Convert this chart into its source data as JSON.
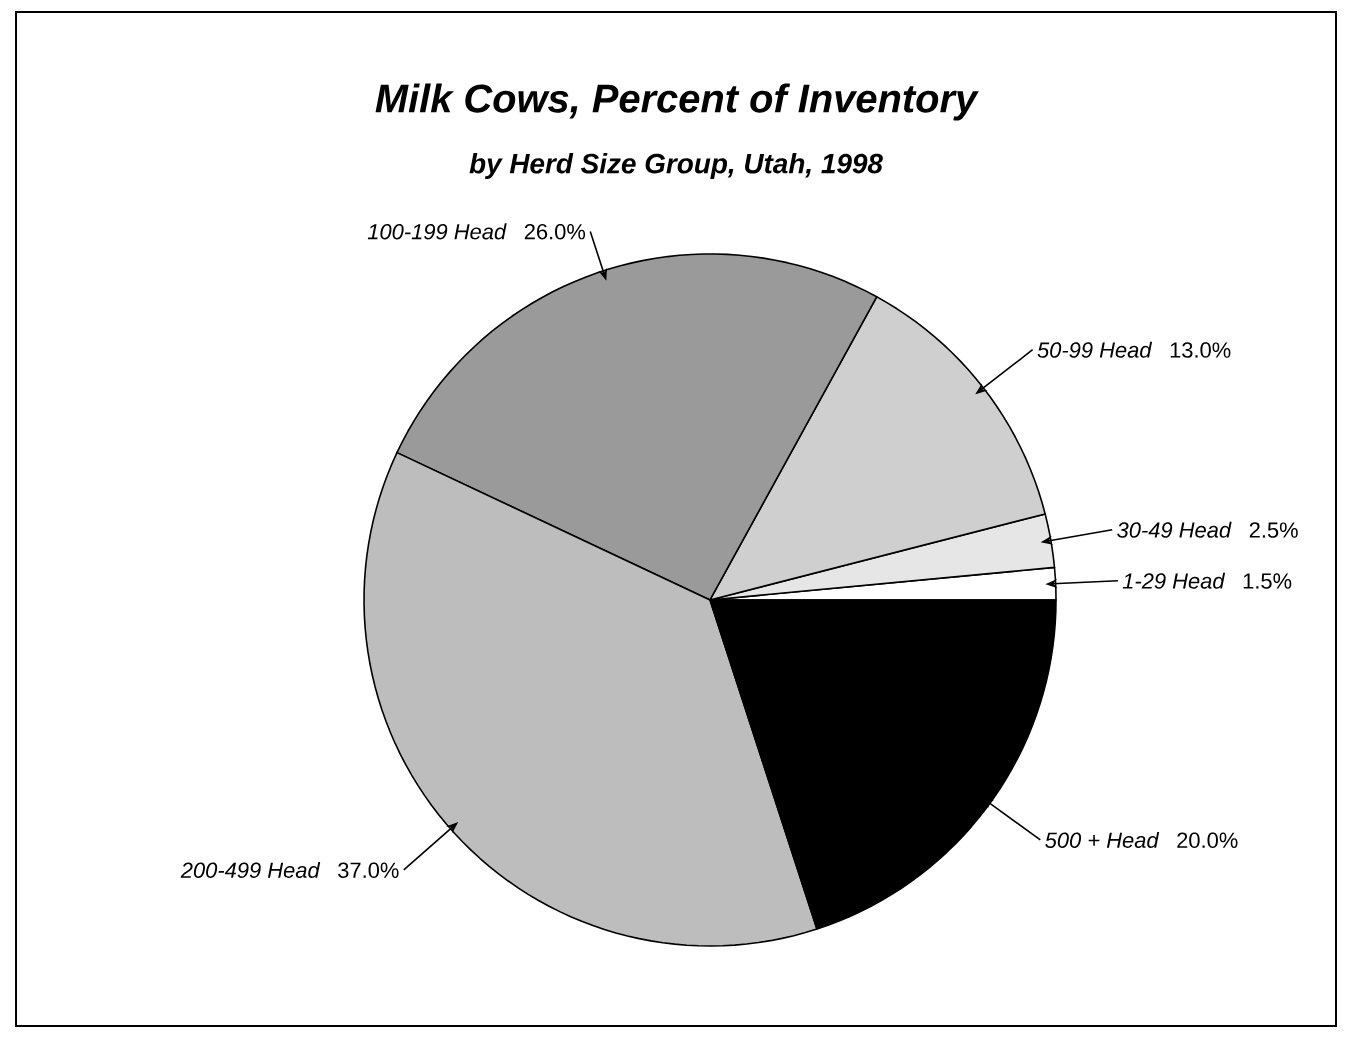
{
  "chart_data": {
    "type": "pie",
    "title": "Milk Cows, Percent of Inventory",
    "subtitle": "by Herd Size Group, Utah, 1998",
    "categories": [
      "1-29 Head",
      "30-49 Head",
      "50-99 Head",
      "100-199 Head",
      "200-499 Head",
      "500 + Head"
    ],
    "values": [
      1.5,
      2.5,
      13.0,
      26.0,
      37.0,
      20.0
    ],
    "value_labels": [
      "1.5%",
      "2.5%",
      "13.0%",
      "26.0%",
      "37.0%",
      "20.0%"
    ],
    "colors": [
      "#ffffff",
      "#e6e6e6",
      "#cfcfcf",
      "#9a9a9a",
      "#bdbdbd",
      "#000000"
    ]
  }
}
